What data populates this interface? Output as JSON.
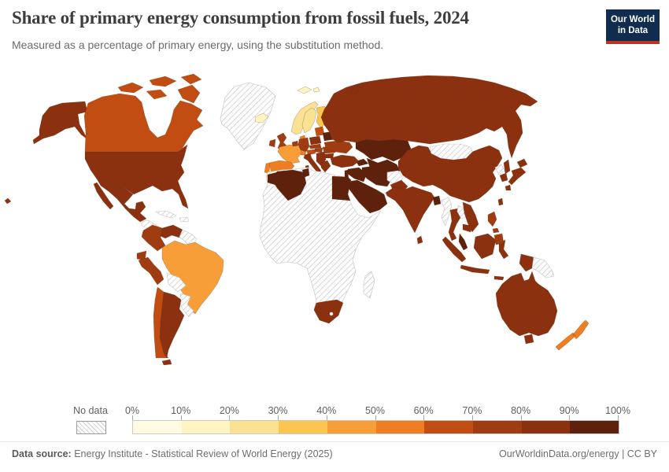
{
  "header": {
    "title": "Share of primary energy consumption from fossil fuels, 2024",
    "subtitle": "Measured as a percentage of primary energy, using the substitution method.",
    "logo": {
      "line1": "Our World",
      "line2": "in Data",
      "bg_color": "#102d50",
      "accent_color": "#c0311f"
    }
  },
  "legend": {
    "no_data_label": "No data",
    "ticks": [
      "0%",
      "10%",
      "20%",
      "30%",
      "40%",
      "50%",
      "60%",
      "70%",
      "80%",
      "90%",
      "100%"
    ],
    "colors": [
      "#FFFBE3",
      "#FFF4C2",
      "#FBE293",
      "#FBC54F",
      "#F89E38",
      "#EF7D22",
      "#C14D12",
      "#A03C11",
      "#8B3110",
      "#5E210B"
    ]
  },
  "footer": {
    "source_label": "Data source:",
    "source_text": "Energy Institute - Statistical Review of World Energy (2025)",
    "right_text": "OurWorldinData.org/energy | CC BY"
  },
  "chart_data": {
    "type": "choropleth",
    "title": "Share of primary energy consumption from fossil fuels, 2024",
    "unit": "% of primary energy (substitution method)",
    "scale_buckets": [
      "0-10%",
      "10-20%",
      "20-30%",
      "30-40%",
      "40-50%",
      "50-60%",
      "60-70%",
      "70-80%",
      "80-90%",
      "90-100%",
      "No data"
    ],
    "regions": [
      {
        "id": "usa",
        "label": "United States",
        "range": "80-90%"
      },
      {
        "id": "canada",
        "label": "Canada",
        "range": "60-70%"
      },
      {
        "id": "greenland",
        "label": "Greenland",
        "range": "No data"
      },
      {
        "id": "mexico",
        "label": "Mexico",
        "range": "80-90%"
      },
      {
        "id": "central-america",
        "label": "Central America",
        "range": "No data"
      },
      {
        "id": "cuba",
        "label": "Cuba",
        "range": "No data"
      },
      {
        "id": "hispaniola",
        "label": "Hispaniola",
        "range": "No data"
      },
      {
        "id": "colombia",
        "label": "Colombia",
        "range": "70-80%"
      },
      {
        "id": "venezuela",
        "label": "Venezuela",
        "range": "80-90%"
      },
      {
        "id": "guyanas",
        "label": "Guyana and Suriname",
        "range": "No data"
      },
      {
        "id": "ecuador",
        "label": "Ecuador",
        "range": "70-80%"
      },
      {
        "id": "peru",
        "label": "Peru",
        "range": "70-80%"
      },
      {
        "id": "brazil",
        "label": "Brazil",
        "range": "40-50%"
      },
      {
        "id": "bolivia",
        "label": "Bolivia",
        "range": "No data"
      },
      {
        "id": "paraguay-uruguay",
        "label": "Paraguay and Uruguay",
        "range": "No data"
      },
      {
        "id": "chile",
        "label": "Chile",
        "range": "60-70%"
      },
      {
        "id": "argentina",
        "label": "Argentina",
        "range": "80-90%"
      },
      {
        "id": "iceland",
        "label": "Iceland",
        "range": "10-20%"
      },
      {
        "id": "svalbard",
        "label": "Svalbard",
        "range": "10-20%"
      },
      {
        "id": "norway",
        "label": "Norway",
        "range": "20-30%"
      },
      {
        "id": "sweden",
        "label": "Sweden",
        "range": "20-30%"
      },
      {
        "id": "finland",
        "label": "Finland",
        "range": "30-40%"
      },
      {
        "id": "denmark",
        "label": "Denmark",
        "range": "50-60%"
      },
      {
        "id": "uk",
        "label": "United Kingdom",
        "range": "70-80%"
      },
      {
        "id": "ireland",
        "label": "Ireland",
        "range": "70-80%"
      },
      {
        "id": "france",
        "label": "France",
        "range": "40-50%"
      },
      {
        "id": "spain",
        "label": "Spain",
        "range": "50-60%"
      },
      {
        "id": "portugal",
        "label": "Portugal",
        "range": "50-60%"
      },
      {
        "id": "benelux",
        "label": "Belgium and Netherlands",
        "range": "70-80%"
      },
      {
        "id": "germany",
        "label": "Germany",
        "range": "70-80%"
      },
      {
        "id": "switzerland",
        "label": "Switzerland",
        "range": "50-60%"
      },
      {
        "id": "austria",
        "label": "Austria",
        "range": "60-70%"
      },
      {
        "id": "italy",
        "label": "Italy",
        "range": "80-90%"
      },
      {
        "id": "poland",
        "label": "Poland",
        "range": "80-90%"
      },
      {
        "id": "czech-slovakia",
        "label": "Czechia and Slovakia",
        "range": "70-80%"
      },
      {
        "id": "hungary",
        "label": "Hungary",
        "range": "70-80%"
      },
      {
        "id": "balkans",
        "label": "Western Balkans",
        "range": "80-90%"
      },
      {
        "id": "greece",
        "label": "Greece",
        "range": "80-90%"
      },
      {
        "id": "romania",
        "label": "Romania",
        "range": "70-80%"
      },
      {
        "id": "bulgaria",
        "label": "Bulgaria",
        "range": "80-90%"
      },
      {
        "id": "baltics",
        "label": "Baltic states",
        "range": "60-70%"
      },
      {
        "id": "belarus",
        "label": "Belarus",
        "range": "90-100%"
      },
      {
        "id": "ukraine",
        "label": "Ukraine",
        "range": "70-80%"
      },
      {
        "id": "russia",
        "label": "Russia",
        "range": "80-90%"
      },
      {
        "id": "turkey",
        "label": "Turkey",
        "range": "80-90%"
      },
      {
        "id": "caucasus",
        "label": "Azerbaijan and Caucasus",
        "range": "90-100%"
      },
      {
        "id": "kazakhstan",
        "label": "Kazakhstan",
        "range": "90-100%"
      },
      {
        "id": "central-asia",
        "label": "Turkmenistan and Uzbekistan",
        "range": "90-100%"
      },
      {
        "id": "iran",
        "label": "Iran",
        "range": "90-100%"
      },
      {
        "id": "iraq-syria",
        "label": "Iraq and Syria",
        "range": "90-100%"
      },
      {
        "id": "israel-jordan",
        "label": "Israel and Jordan",
        "range": "90-100%"
      },
      {
        "id": "saudi-peninsula",
        "label": "Saudi Arabia and Arabian Peninsula",
        "range": "90-100%"
      },
      {
        "id": "afghanistan",
        "label": "Afghanistan",
        "range": "No data"
      },
      {
        "id": "pakistan",
        "label": "Pakistan",
        "range": "80-90%"
      },
      {
        "id": "india",
        "label": "India",
        "range": "80-90%"
      },
      {
        "id": "bangladesh",
        "label": "Bangladesh",
        "range": "90-100%"
      },
      {
        "id": "sri-lanka",
        "label": "Sri Lanka",
        "range": "80-90%"
      },
      {
        "id": "myanmar",
        "label": "Myanmar",
        "range": "No data"
      },
      {
        "id": "thailand",
        "label": "Thailand",
        "range": "80-90%"
      },
      {
        "id": "laos",
        "label": "Laos",
        "range": "No data"
      },
      {
        "id": "vietnam",
        "label": "Vietnam",
        "range": "80-90%"
      },
      {
        "id": "cambodia",
        "label": "Cambodia",
        "range": "80-90%"
      },
      {
        "id": "malaysia",
        "label": "Malaysia",
        "range": "90-100%"
      },
      {
        "id": "indonesia",
        "label": "Indonesia",
        "range": "80-90%"
      },
      {
        "id": "west-papua",
        "label": "Indonesia (Papua)",
        "range": "80-90%"
      },
      {
        "id": "papua-new-guinea",
        "label": "Papua New Guinea",
        "range": "No data"
      },
      {
        "id": "philippines",
        "label": "Philippines",
        "range": "70-80%"
      },
      {
        "id": "taiwan",
        "label": "Taiwan",
        "range": "80-90%"
      },
      {
        "id": "china",
        "label": "China",
        "range": "80-90%"
      },
      {
        "id": "mongolia",
        "label": "Mongolia",
        "range": "No data"
      },
      {
        "id": "north-korea",
        "label": "North Korea",
        "range": "No data"
      },
      {
        "id": "south-korea",
        "label": "South Korea",
        "range": "80-90%"
      },
      {
        "id": "japan",
        "label": "Japan",
        "range": "80-90%"
      },
      {
        "id": "africa-nodata",
        "label": "Sub-Saharan Africa (most countries)",
        "range": "No data"
      },
      {
        "id": "morocco",
        "label": "Morocco",
        "range": "90-100%"
      },
      {
        "id": "algeria",
        "label": "Algeria",
        "range": "90-100%"
      },
      {
        "id": "tunisia",
        "label": "Tunisia",
        "range": "90-100%"
      },
      {
        "id": "egypt",
        "label": "Egypt",
        "range": "90-100%"
      },
      {
        "id": "south-africa",
        "label": "South Africa",
        "range": "80-90%"
      },
      {
        "id": "madagascar",
        "label": "Madagascar",
        "range": "No data"
      },
      {
        "id": "australia",
        "label": "Australia",
        "range": "80-90%"
      },
      {
        "id": "new-zealand",
        "label": "New Zealand",
        "range": "50-60%"
      }
    ]
  }
}
